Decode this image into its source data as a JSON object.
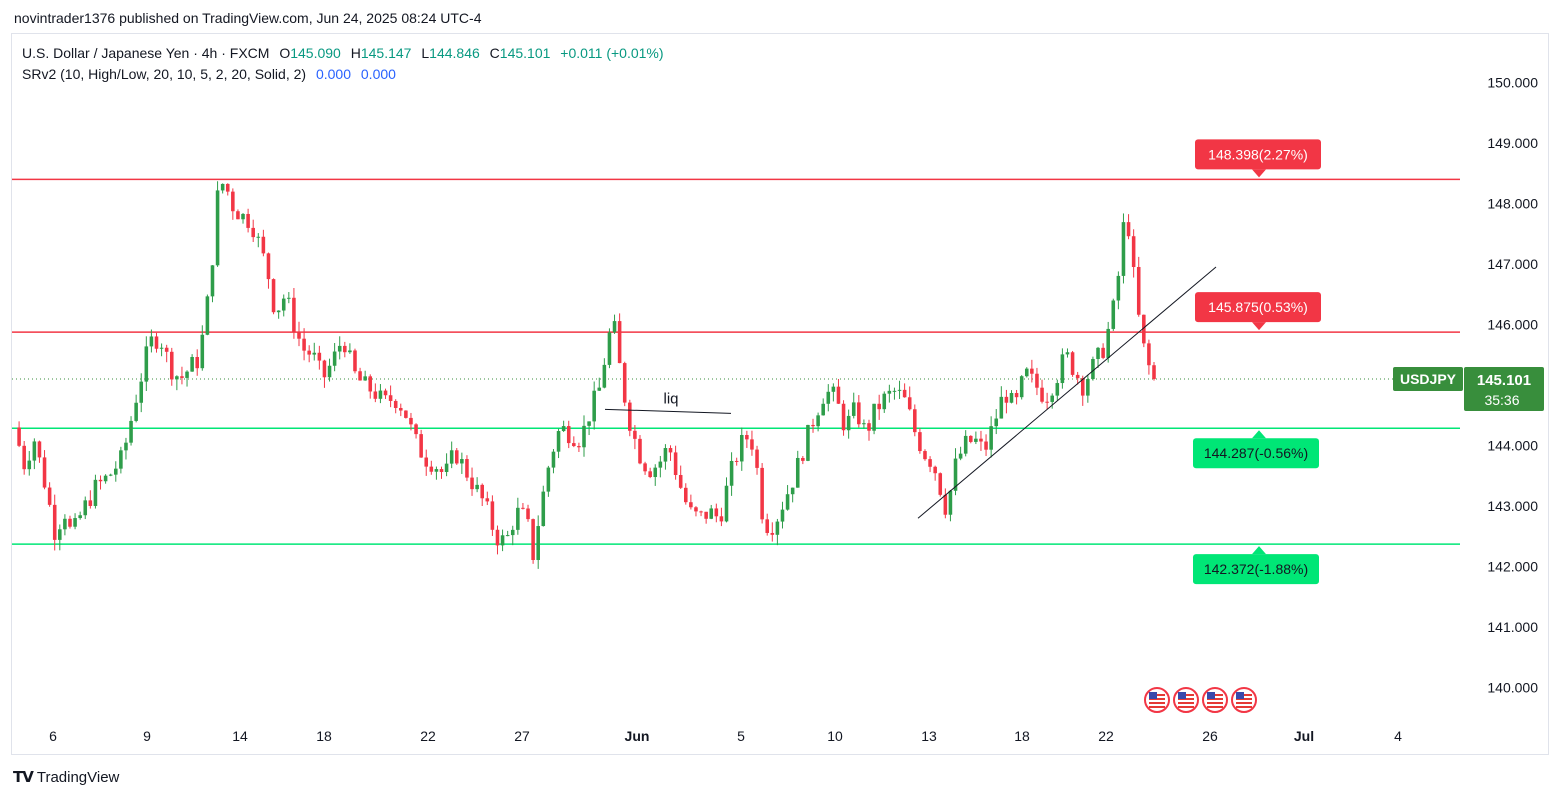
{
  "publisher": "novintrader1376 published on TradingView.com, Jun 24, 2025 08:24 UTC-4",
  "legend": {
    "symbol": "U.S. Dollar / Japanese Yen · 4h · FXCM",
    "o_label": "O",
    "o": "145.090",
    "h_label": "H",
    "h": "145.147",
    "l_label": "L",
    "l": "144.846",
    "c_label": "C",
    "c": "145.101",
    "change": "+0.011 (+0.01%)",
    "indicator": "SRv2 (10, High/Low, 20, 10, 5, 2, 20, Solid, 2)",
    "ind_v1": "0.000",
    "ind_v2": "0.000"
  },
  "footer": {
    "brand": "TradingView",
    "logo": "TV"
  },
  "colors": {
    "up": "#089981",
    "up_candle": "#2e9d4a",
    "down": "#f23645",
    "res": "#f23645",
    "sup": "#00e676",
    "sup_label": "#00e676",
    "price": "#388e3c",
    "axis_text": "#131722"
  },
  "chart_data": {
    "type": "candlestick",
    "title": "U.S. Dollar / Japanese Yen · 4h · FXCM",
    "ylim": [
      139.5,
      150.8
    ],
    "yticks": [
      "150.000",
      "149.000",
      "148.000",
      "147.000",
      "146.000",
      "145.000",
      "144.000",
      "143.000",
      "142.000",
      "141.000",
      "140.000"
    ],
    "xticks": [
      "6",
      "9",
      "14",
      "18",
      "22",
      "27",
      "Jun",
      "5",
      "10",
      "13",
      "18",
      "22",
      "26",
      "Jul",
      "4"
    ],
    "current_price": {
      "symbol": "USDJPY",
      "price": "145.101",
      "countdown": "35:36",
      "value": 145.101
    },
    "levels": [
      {
        "value": 148.398,
        "label": "148.398(2.27%)",
        "kind": "resistance"
      },
      {
        "value": 145.875,
        "label": "145.875(0.53%)",
        "kind": "resistance"
      },
      {
        "value": 144.287,
        "label": "144.287(-0.56%)",
        "kind": "support"
      },
      {
        "value": 142.372,
        "label": "142.372(-1.88%)",
        "kind": "support"
      }
    ],
    "annotations": [
      {
        "text": "liq",
        "kind": "horizontal-line",
        "start": "May 31",
        "end": "Jun 4",
        "value": 144.5
      },
      {
        "text": "",
        "kind": "trendline",
        "start": "Jun 13",
        "end": "Jun 26",
        "from": 142.8,
        "to": 146.95
      }
    ],
    "events_icons": [
      "us-flag-icon",
      "us-flag-icon",
      "us-flag-icon",
      "us-flag-icon"
    ],
    "close_path": [
      {
        "x": 0,
        "y": 144.3
      },
      {
        "x": 6,
        "y": 143.7
      },
      {
        "x": 12,
        "y": 144.1
      },
      {
        "x": 18,
        "y": 143.4
      },
      {
        "x": 24,
        "y": 142.6
      },
      {
        "x": 30,
        "y": 142.9
      },
      {
        "x": 34,
        "y": 142.5
      },
      {
        "x": 40,
        "y": 142.9
      },
      {
        "x": 48,
        "y": 143.3
      },
      {
        "x": 56,
        "y": 143.5
      },
      {
        "x": 64,
        "y": 143.8
      },
      {
        "x": 72,
        "y": 144.8
      },
      {
        "x": 80,
        "y": 145.7
      },
      {
        "x": 86,
        "y": 145.8
      },
      {
        "x": 92,
        "y": 145.3
      },
      {
        "x": 98,
        "y": 145.1
      },
      {
        "x": 104,
        "y": 145.3
      },
      {
        "x": 108,
        "y": 145.4
      },
      {
        "x": 112,
        "y": 145.9
      },
      {
        "x": 116,
        "y": 146.8
      },
      {
        "x": 120,
        "y": 148.1
      },
      {
        "x": 124,
        "y": 148.4
      },
      {
        "x": 128,
        "y": 148.0
      },
      {
        "x": 134,
        "y": 147.8
      },
      {
        "x": 140,
        "y": 147.7
      },
      {
        "x": 146,
        "y": 147.2
      },
      {
        "x": 150,
        "y": 146.8
      },
      {
        "x": 154,
        "y": 146.2
      },
      {
        "x": 160,
        "y": 146.5
      },
      {
        "x": 164,
        "y": 146.1
      },
      {
        "x": 170,
        "y": 145.6
      },
      {
        "x": 176,
        "y": 145.5
      },
      {
        "x": 182,
        "y": 145.1
      },
      {
        "x": 188,
        "y": 145.4
      },
      {
        "x": 194,
        "y": 145.8
      },
      {
        "x": 200,
        "y": 145.2
      },
      {
        "x": 206,
        "y": 145.0
      },
      {
        "x": 212,
        "y": 144.9
      },
      {
        "x": 218,
        "y": 144.7
      },
      {
        "x": 224,
        "y": 144.8
      },
      {
        "x": 230,
        "y": 144.6
      },
      {
        "x": 236,
        "y": 144.1
      },
      {
        "x": 242,
        "y": 143.8
      },
      {
        "x": 248,
        "y": 143.7
      },
      {
        "x": 254,
        "y": 143.5
      },
      {
        "x": 260,
        "y": 143.9
      },
      {
        "x": 266,
        "y": 143.6
      },
      {
        "x": 272,
        "y": 143.3
      },
      {
        "x": 278,
        "y": 143.0
      },
      {
        "x": 284,
        "y": 142.5
      },
      {
        "x": 290,
        "y": 142.4
      },
      {
        "x": 296,
        "y": 142.9
      },
      {
        "x": 302,
        "y": 142.8
      },
      {
        "x": 306,
        "y": 142.2
      },
      {
        "x": 310,
        "y": 142.9
      },
      {
        "x": 316,
        "y": 143.8
      },
      {
        "x": 322,
        "y": 144.3
      },
      {
        "x": 328,
        "y": 144.2
      },
      {
        "x": 334,
        "y": 144.1
      },
      {
        "x": 340,
        "y": 144.6
      },
      {
        "x": 346,
        "y": 145.0
      },
      {
        "x": 350,
        "y": 145.8
      },
      {
        "x": 354,
        "y": 145.9
      },
      {
        "x": 358,
        "y": 145.1
      },
      {
        "x": 362,
        "y": 144.5
      },
      {
        "x": 368,
        "y": 143.9
      },
      {
        "x": 374,
        "y": 143.6
      },
      {
        "x": 380,
        "y": 143.7
      },
      {
        "x": 386,
        "y": 144.0
      },
      {
        "x": 392,
        "y": 143.4
      },
      {
        "x": 398,
        "y": 142.9
      },
      {
        "x": 404,
        "y": 142.8
      },
      {
        "x": 410,
        "y": 142.9
      },
      {
        "x": 416,
        "y": 142.8
      },
      {
        "x": 422,
        "y": 143.5
      },
      {
        "x": 428,
        "y": 144.0
      },
      {
        "x": 434,
        "y": 144.2
      },
      {
        "x": 438,
        "y": 143.6
      },
      {
        "x": 442,
        "y": 142.7
      },
      {
        "x": 448,
        "y": 142.7
      },
      {
        "x": 454,
        "y": 143.1
      },
      {
        "x": 460,
        "y": 143.5
      },
      {
        "x": 466,
        "y": 144.0
      },
      {
        "x": 472,
        "y": 144.5
      },
      {
        "x": 478,
        "y": 144.9
      },
      {
        "x": 484,
        "y": 144.8
      },
      {
        "x": 490,
        "y": 144.3
      },
      {
        "x": 496,
        "y": 144.6
      },
      {
        "x": 502,
        "y": 144.2
      },
      {
        "x": 508,
        "y": 144.6
      },
      {
        "x": 514,
        "y": 144.8
      },
      {
        "x": 520,
        "y": 144.9
      },
      {
        "x": 526,
        "y": 144.7
      },
      {
        "x": 530,
        "y": 144.3
      },
      {
        "x": 536,
        "y": 143.9
      },
      {
        "x": 542,
        "y": 143.7
      },
      {
        "x": 546,
        "y": 143.3
      },
      {
        "x": 550,
        "y": 142.9
      },
      {
        "x": 554,
        "y": 143.6
      },
      {
        "x": 560,
        "y": 144.0
      },
      {
        "x": 566,
        "y": 144.1
      },
      {
        "x": 572,
        "y": 143.9
      },
      {
        "x": 578,
        "y": 144.4
      },
      {
        "x": 584,
        "y": 144.9
      },
      {
        "x": 590,
        "y": 144.6
      },
      {
        "x": 596,
        "y": 145.2
      },
      {
        "x": 602,
        "y": 145.0
      },
      {
        "x": 608,
        "y": 144.8
      },
      {
        "x": 614,
        "y": 145.1
      },
      {
        "x": 620,
        "y": 145.5
      },
      {
        "x": 626,
        "y": 145.2
      },
      {
        "x": 630,
        "y": 145.0
      },
      {
        "x": 636,
        "y": 145.3
      },
      {
        "x": 642,
        "y": 145.6
      },
      {
        "x": 646,
        "y": 146.0
      },
      {
        "x": 650,
        "y": 146.5
      },
      {
        "x": 652,
        "y": 147.1
      },
      {
        "x": 654,
        "y": 147.6
      },
      {
        "x": 656,
        "y": 147.7
      },
      {
        "x": 658,
        "y": 147.5
      },
      {
        "x": 660,
        "y": 146.8
      },
      {
        "x": 662,
        "y": 146.2
      },
      {
        "x": 664,
        "y": 146.0
      },
      {
        "x": 666,
        "y": 145.6
      },
      {
        "x": 668,
        "y": 145.4
      },
      {
        "x": 670,
        "y": 145.2
      },
      {
        "x": 672,
        "y": 145.1
      }
    ]
  }
}
